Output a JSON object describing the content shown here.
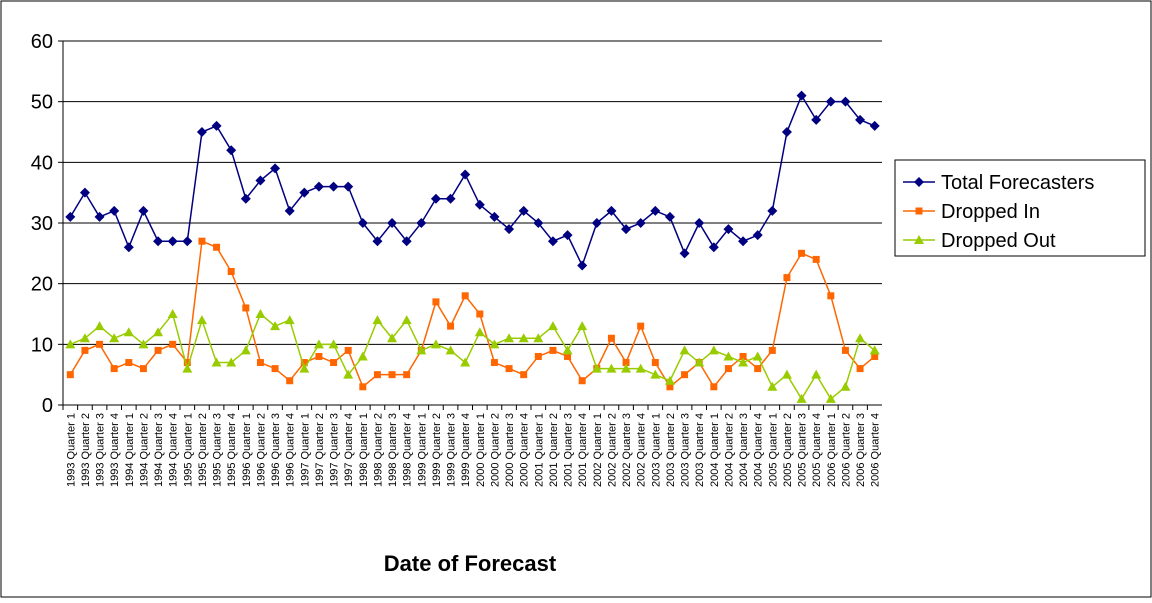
{
  "chart_data": {
    "type": "line",
    "x_label": "Date of Forecast",
    "categories": [
      "1993 Quarter 1",
      "1993 Quarter 2",
      "1993 Quarter 3",
      "1993 Quarter 4",
      "1994 Quarter 1",
      "1994 Quarter 2",
      "1994 Quarter 3",
      "1994 Quarter 4",
      "1995 Quarter 1",
      "1995 Quarter 2",
      "1995 Quarter 3",
      "1995 Quarter 4",
      "1996 Quarter 1",
      "1996 Quarter 2",
      "1996 Quarter 3",
      "1996 Quarter 4",
      "1997 Quarter 1",
      "1997 Quarter 2",
      "1997 Quarter 3",
      "1997 Quarter 4",
      "1998 Quarter 1",
      "1998 Quarter 2",
      "1998 Quarter 3",
      "1998 Quarter 4",
      "1999 Quarter 1",
      "1999 Quarter 2",
      "1999 Quarter 3",
      "1999 Quarter 4",
      "2000 Quarter 1",
      "2000 Quarter 2",
      "2000 Quarter 3",
      "2000 Quarter 4",
      "2001 Quarter 1",
      "2001 Quarter 2",
      "2001 Quarter 3",
      "2001 Quarter 4",
      "2002 Quarter 1",
      "2002 Quarter 2",
      "2002 Quarter 3",
      "2002 Quarter 4",
      "2003 Quarter 1",
      "2003 Quarter 2",
      "2003 Quarter 3",
      "2003 Quarter 4",
      "2004 Quarter 1",
      "2004 Quarter 2",
      "2004 Quarter 3",
      "2004 Quarter 4",
      "2005 Quarter 1",
      "2005 Quarter 2",
      "2005 Quarter 3",
      "2005 Quarter 4",
      "2006 Quarter 1",
      "2006 Quarter 2",
      "2006 Quarter 3",
      "2006 Quarter 4"
    ],
    "series": [
      {
        "name": "Total Forecasters",
        "color": "#000080",
        "marker": "diamond",
        "values": [
          31,
          35,
          31,
          32,
          26,
          32,
          27,
          27,
          27,
          45,
          46,
          42,
          34,
          37,
          39,
          32,
          35,
          36,
          36,
          36,
          30,
          27,
          30,
          27,
          30,
          34,
          34,
          38,
          33,
          31,
          29,
          32,
          30,
          27,
          28,
          23,
          30,
          32,
          29,
          30,
          32,
          31,
          25,
          30,
          26,
          29,
          27,
          28,
          32,
          45,
          51,
          47,
          50,
          50,
          47,
          46
        ]
      },
      {
        "name": "Dropped In",
        "color": "#FF6600",
        "marker": "square",
        "values": [
          5,
          9,
          10,
          6,
          7,
          6,
          9,
          10,
          7,
          27,
          26,
          22,
          16,
          7,
          6,
          4,
          7,
          8,
          7,
          9,
          3,
          5,
          5,
          5,
          9,
          17,
          13,
          18,
          15,
          7,
          6,
          5,
          8,
          9,
          8,
          4,
          6,
          11,
          7,
          13,
          7,
          3,
          5,
          7,
          3,
          6,
          8,
          6,
          9,
          21,
          25,
          24,
          18,
          9,
          6,
          8
        ]
      },
      {
        "name": "Dropped Out",
        "color": "#99CC00",
        "marker": "triangle",
        "values": [
          10,
          11,
          13,
          11,
          12,
          10,
          12,
          15,
          6,
          14,
          7,
          7,
          9,
          15,
          13,
          14,
          6,
          10,
          10,
          5,
          8,
          14,
          11,
          14,
          9,
          10,
          9,
          7,
          12,
          10,
          11,
          11,
          11,
          13,
          9,
          13,
          6,
          6,
          6,
          6,
          5,
          4,
          9,
          7,
          9,
          8,
          7,
          8,
          3,
          5,
          1,
          5,
          1,
          3,
          11,
          9
        ]
      }
    ],
    "ylim": [
      0,
      60
    ],
    "yticks": [
      0,
      10,
      20,
      30,
      40,
      50,
      60
    ],
    "grid": true,
    "legend": "right"
  }
}
